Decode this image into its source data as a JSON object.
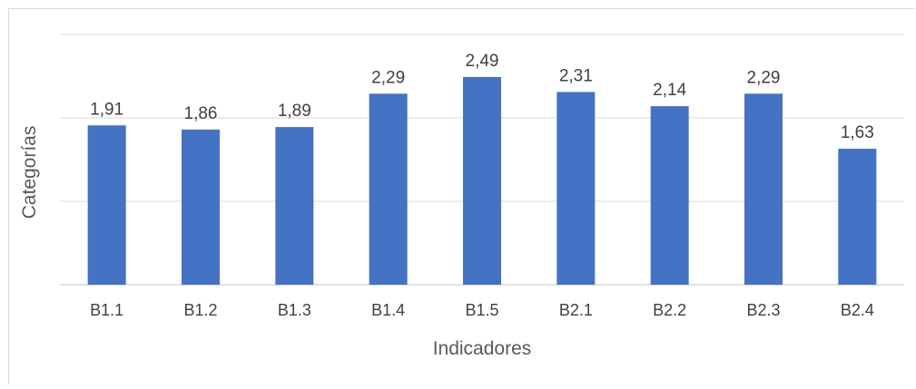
{
  "chart_data": {
    "type": "bar",
    "title": "",
    "xlabel": "Indicadores",
    "ylabel": "Categorías",
    "categories": [
      "B1.1",
      "B1.2",
      "B1.3",
      "B1.4",
      "B1.5",
      "B2.1",
      "B2.2",
      "B2.3",
      "B2.4"
    ],
    "values": [
      1.91,
      1.86,
      1.89,
      2.29,
      2.49,
      2.31,
      2.14,
      2.29,
      1.63
    ],
    "value_labels": [
      "1,91",
      "1,86",
      "1,89",
      "2,29",
      "2,49",
      "2,31",
      "2,14",
      "2,29",
      "1,63"
    ],
    "ylim": [
      0,
      3
    ],
    "y_gridlines": [
      0,
      1,
      2,
      3
    ],
    "y_tick_labels_shown": false,
    "grid": true,
    "legend": false,
    "bar_color": "#4472C4",
    "gridline_color": "#d9d9d9"
  }
}
